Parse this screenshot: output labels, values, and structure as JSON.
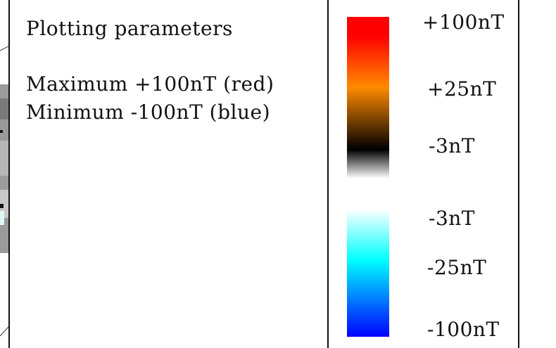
{
  "parameters": {
    "title": "Plotting parameters",
    "maximum": "Maximum +100nT (red)",
    "minimum": "Minimum -100nT (blue)"
  },
  "legend": {
    "labels": [
      {
        "text": "+100nT"
      },
      {
        "text": "+25nT"
      },
      {
        "text": "-3nT"
      },
      {
        "text": "-3nT"
      },
      {
        "text": "-25nT"
      },
      {
        "text": "-100nT"
      }
    ],
    "colors": {
      "top": "#ff0000",
      "orange": "#ff8a00",
      "dark": "#000000",
      "white": "#ffffff",
      "cyan": "#00ffff",
      "bottom": "#0000ff"
    }
  }
}
